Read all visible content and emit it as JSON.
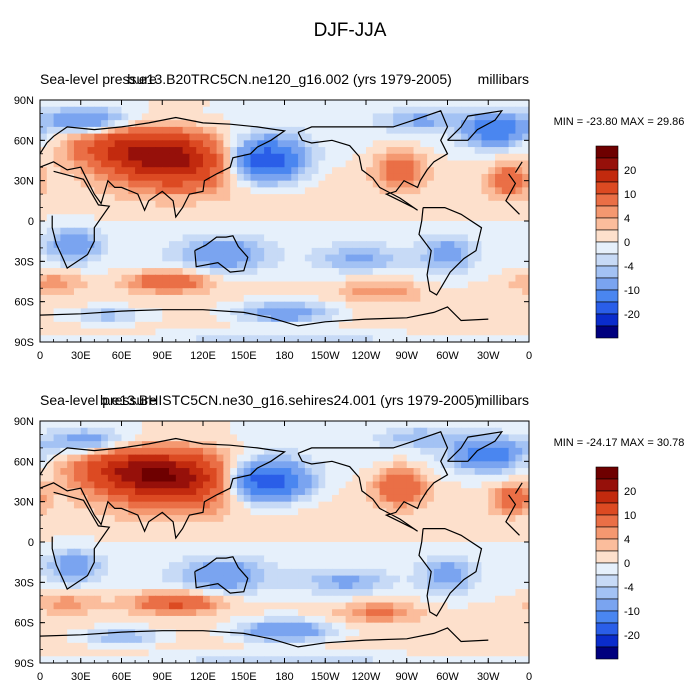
{
  "figure_title": "DJF-JJA",
  "chart_data": [
    {
      "type": "heatmap",
      "title_left": "Sea-level pressure",
      "title_center": "b.e13.B20TRC5CN.ne120_g16.002 (yrs 1979-2005)",
      "units": "millibars",
      "min_max_label": "MIN = -23.80  MAX =  29.86",
      "min": -23.8,
      "max": 29.86,
      "x_ticks": [
        "0",
        "30E",
        "60E",
        "90E",
        "120E",
        "150E",
        "180",
        "150W",
        "120W",
        "90W",
        "60W",
        "30W",
        "0"
      ],
      "y_ticks": [
        "90N",
        "60N",
        "30N",
        "0",
        "30S",
        "60S",
        "90S"
      ],
      "xlim": [
        0,
        360
      ],
      "ylim": [
        -90,
        90
      ],
      "anomaly_centers": [
        {
          "lon": 100,
          "lat": 45,
          "amp": 20,
          "lon_w": 45,
          "lat_w": 20
        },
        {
          "lon": 60,
          "lat": 55,
          "amp": 12,
          "lon_w": 40,
          "lat_w": 15
        },
        {
          "lon": 165,
          "lat": 45,
          "amp": -21,
          "lon_w": 28,
          "lat_w": 16
        },
        {
          "lon": 265,
          "lat": 40,
          "amp": 8,
          "lon_w": 18,
          "lat_w": 15
        },
        {
          "lon": 345,
          "lat": 30,
          "amp": 9,
          "lon_w": 14,
          "lat_w": 12
        },
        {
          "lon": 35,
          "lat": 75,
          "amp": -11,
          "lon_w": 28,
          "lat_w": 9
        },
        {
          "lon": 335,
          "lat": 68,
          "amp": -14,
          "lon_w": 22,
          "lat_w": 12
        },
        {
          "lon": 280,
          "lat": 75,
          "amp": -6,
          "lon_w": 28,
          "lat_w": 8
        },
        {
          "lon": 135,
          "lat": -25,
          "amp": -9,
          "lon_w": 30,
          "lat_w": 12
        },
        {
          "lon": 25,
          "lat": -18,
          "amp": -9,
          "lon_w": 18,
          "lat_w": 12
        },
        {
          "lon": 300,
          "lat": -25,
          "amp": -7,
          "lon_w": 18,
          "lat_w": 14
        },
        {
          "lon": 235,
          "lat": -28,
          "amp": -6,
          "lon_w": 30,
          "lat_w": 9
        },
        {
          "lon": 95,
          "lat": -45,
          "amp": 10,
          "lon_w": 30,
          "lat_w": 8
        },
        {
          "lon": 10,
          "lat": -45,
          "amp": 5,
          "lon_w": 25,
          "lat_w": 8
        },
        {
          "lon": 250,
          "lat": -52,
          "amp": 5,
          "lon_w": 30,
          "lat_w": 8
        },
        {
          "lon": 180,
          "lat": -68,
          "amp": -10,
          "lon_w": 35,
          "lat_w": 8
        },
        {
          "lon": 50,
          "lat": -70,
          "amp": -6,
          "lon_w": 30,
          "lat_w": 6
        },
        {
          "lon": 180,
          "lat": -88,
          "amp": -3,
          "lon_w": 120,
          "lat_w": 5
        }
      ]
    },
    {
      "type": "heatmap",
      "title_left": "Sea-level pressure",
      "title_center": "b.e13.BHISTC5CN.ne30_g16.sehires24.001 (yrs 1979-2005)",
      "units": "millibars",
      "min_max_label": "MIN = -24.17  MAX =  30.78",
      "min": -24.17,
      "max": 30.78,
      "x_ticks": [
        "0",
        "30E",
        "60E",
        "90E",
        "120E",
        "150E",
        "180",
        "150W",
        "120W",
        "90W",
        "60W",
        "30W",
        "0"
      ],
      "y_ticks": [
        "90N",
        "60N",
        "30N",
        "0",
        "30S",
        "60S",
        "90S"
      ],
      "xlim": [
        0,
        360
      ],
      "ylim": [
        -90,
        90
      ],
      "anomaly_centers": [
        {
          "lon": 100,
          "lat": 47,
          "amp": 22,
          "lon_w": 48,
          "lat_w": 20
        },
        {
          "lon": 60,
          "lat": 55,
          "amp": 12,
          "lon_w": 40,
          "lat_w": 15
        },
        {
          "lon": 165,
          "lat": 45,
          "amp": -22,
          "lon_w": 30,
          "lat_w": 15
        },
        {
          "lon": 265,
          "lat": 42,
          "amp": 10,
          "lon_w": 18,
          "lat_w": 14
        },
        {
          "lon": 348,
          "lat": 32,
          "amp": 9,
          "lon_w": 14,
          "lat_w": 10
        },
        {
          "lon": 35,
          "lat": 75,
          "amp": -8,
          "lon_w": 28,
          "lat_w": 9
        },
        {
          "lon": 330,
          "lat": 65,
          "amp": -13,
          "lon_w": 25,
          "lat_w": 12
        },
        {
          "lon": 280,
          "lat": 78,
          "amp": -5,
          "lon_w": 28,
          "lat_w": 8
        },
        {
          "lon": 135,
          "lat": -25,
          "amp": -9,
          "lon_w": 30,
          "lat_w": 12
        },
        {
          "lon": 25,
          "lat": -18,
          "amp": -8,
          "lon_w": 18,
          "lat_w": 12
        },
        {
          "lon": 300,
          "lat": -25,
          "amp": -7,
          "lon_w": 18,
          "lat_w": 14
        },
        {
          "lon": 225,
          "lat": -30,
          "amp": -6,
          "lon_w": 30,
          "lat_w": 9
        },
        {
          "lon": 100,
          "lat": -45,
          "amp": 11,
          "lon_w": 32,
          "lat_w": 8
        },
        {
          "lon": 20,
          "lat": -45,
          "amp": 5,
          "lon_w": 25,
          "lat_w": 8
        },
        {
          "lon": 250,
          "lat": -52,
          "amp": 6,
          "lon_w": 30,
          "lat_w": 8
        },
        {
          "lon": 180,
          "lat": -66,
          "amp": -11,
          "lon_w": 35,
          "lat_w": 8
        },
        {
          "lon": 60,
          "lat": -70,
          "amp": -7,
          "lon_w": 30,
          "lat_w": 6
        },
        {
          "lon": 180,
          "lat": -88,
          "amp": -3,
          "lon_w": 120,
          "lat_w": 5
        }
      ]
    }
  ],
  "colorbar": {
    "levels": [
      -25,
      -20,
      -15,
      -10,
      -6,
      -4,
      -2,
      0,
      2,
      4,
      6,
      10,
      15,
      20,
      25
    ],
    "tick_labels": [
      "20",
      "10",
      "4",
      "0",
      "-4",
      "-10",
      "-20"
    ],
    "tick_values": [
      20,
      10,
      4,
      0,
      -4,
      -10,
      -20
    ],
    "colors": [
      "#00007e",
      "#0a2ccc",
      "#2a5ee8",
      "#4a86f0",
      "#7aa4f0",
      "#a3c2f4",
      "#c7daf6",
      "#e6f0fb",
      "#fde0cc",
      "#fbbd9c",
      "#f49870",
      "#ea6f46",
      "#dc4a22",
      "#c22a0e",
      "#96100a",
      "#6e0000"
    ]
  },
  "colors": {
    "background": "#ffffff",
    "axis": "#000000",
    "coastline": "#000000"
  }
}
